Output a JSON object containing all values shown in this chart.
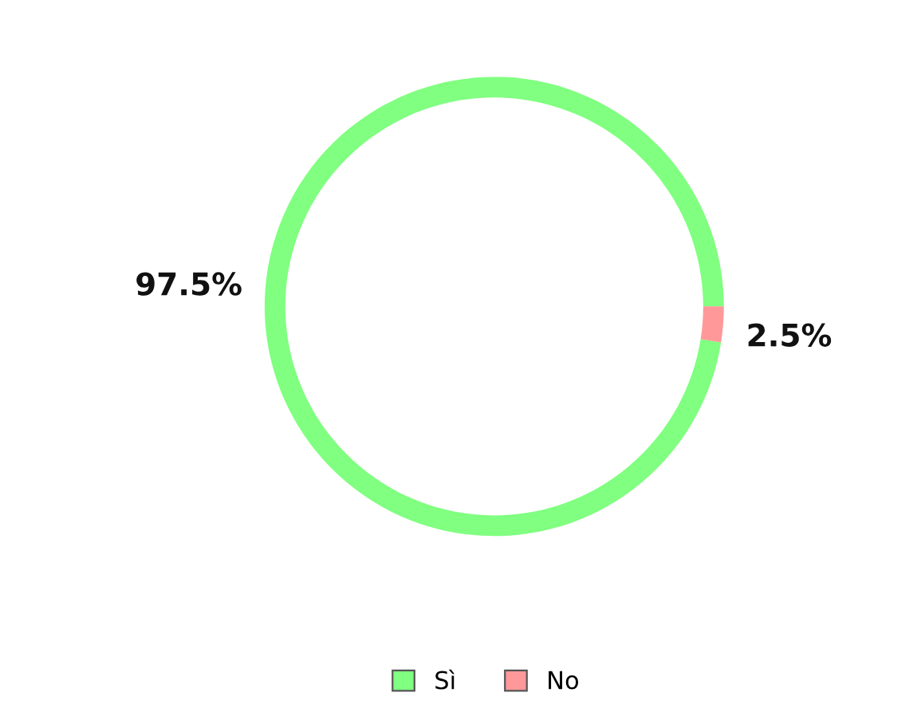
{
  "chart_data": {
    "type": "donut",
    "categories": [
      "Sì",
      "No"
    ],
    "values": [
      97.5,
      2.5
    ],
    "colors": [
      "#80ff80",
      "#ff9999"
    ],
    "value_labels": [
      "97.5%",
      "2.5%"
    ],
    "legend": "bottom"
  }
}
